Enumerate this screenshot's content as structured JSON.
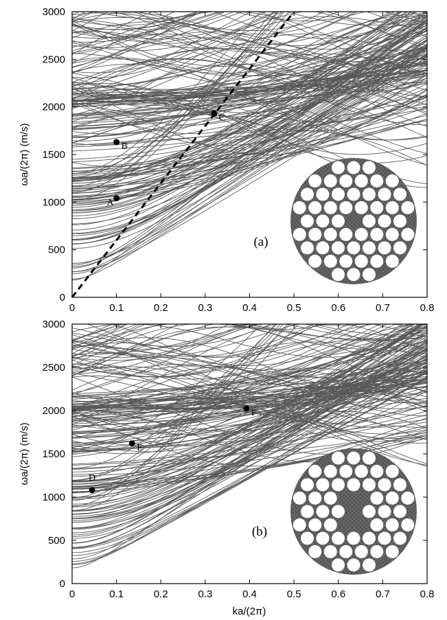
{
  "chart_data": [
    {
      "type": "line",
      "panel_label": "(a)",
      "xlabel": "",
      "ylabel": "ωa/(2π) (m/s)",
      "xlim": [
        0,
        0.8
      ],
      "ylim": [
        0,
        3000
      ],
      "x_ticks": [
        "0",
        "0.1",
        "0.2",
        "0.3",
        "0.4",
        "0.5",
        "0.6",
        "0.7",
        "0.8"
      ],
      "y_ticks": [
        "0",
        "500",
        "1000",
        "1500",
        "2000",
        "2500",
        "3000"
      ],
      "grid": false,
      "line_color": "#595959",
      "dashed_line": {
        "x": [
          0,
          0.5
        ],
        "y": [
          0,
          3000
        ]
      },
      "points": [
        {
          "label": "A",
          "x": 0.1,
          "y": 1040
        },
        {
          "label": "B",
          "x": 0.1,
          "y": 1630
        },
        {
          "label": "C",
          "x": 0.32,
          "y": 1930
        }
      ],
      "inset": "fiber cross-section, holes pattern (a)"
    },
    {
      "type": "line",
      "panel_label": "(b)",
      "xlabel": "ka/(2π)",
      "ylabel": "ωa/(2π) (m/s)",
      "xlim": [
        0,
        0.8
      ],
      "ylim": [
        0,
        3000
      ],
      "x_ticks": [
        "0",
        "0.1",
        "0.2",
        "0.3",
        "0.4",
        "0.5",
        "0.6",
        "0.7",
        "0.8"
      ],
      "y_ticks": [
        "0",
        "500",
        "1000",
        "1500",
        "2000",
        "2500",
        "3000"
      ],
      "grid": false,
      "line_color": "#595959",
      "points": [
        {
          "label": "D",
          "x": 0.045,
          "y": 1080
        },
        {
          "label": "E",
          "x": 0.135,
          "y": 1620
        },
        {
          "label": "F",
          "x": 0.393,
          "y": 2025
        }
      ],
      "inset": "fiber cross-section, holes pattern (b)"
    }
  ]
}
